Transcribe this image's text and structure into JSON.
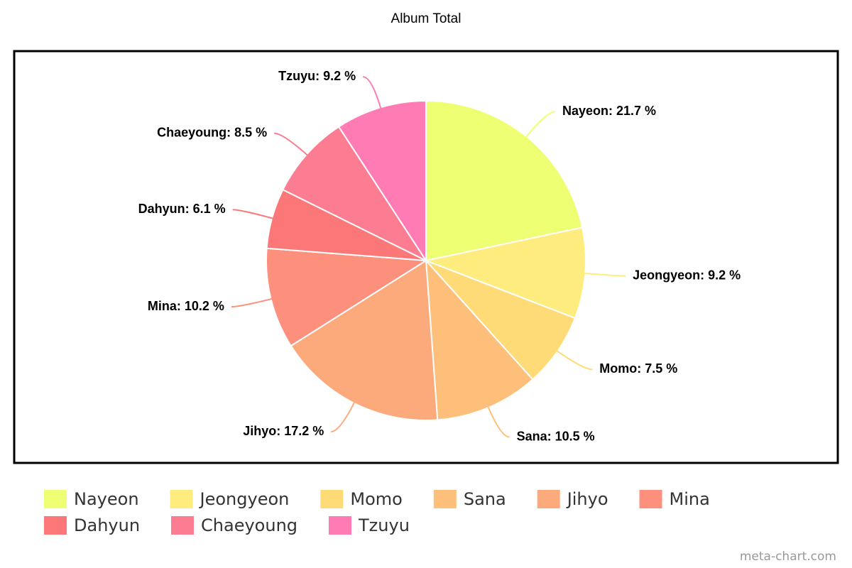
{
  "chart_data": {
    "type": "pie",
    "title": "Album Total",
    "categories": [
      "Nayeon",
      "Jeongyeon",
      "Momo",
      "Sana",
      "Jihyo",
      "Mina",
      "Dahyun",
      "Chaeyoung",
      "Tzuyu"
    ],
    "values": [
      21.7,
      9.2,
      7.5,
      10.5,
      17.2,
      10.2,
      6.1,
      8.5,
      9.2
    ],
    "value_labels": [
      "Nayeon: 21.7 %",
      "Jeongyeon: 9.2 %",
      "Momo: 7.5 %",
      "Sana: 10.5 %",
      "Jihyo: 17.2 %",
      "Mina: 10.2 %",
      "Dahyun: 6.1 %",
      "Chaeyoung: 8.5 %",
      "Tzuyu: 9.2 %"
    ],
    "colors": [
      "#efff73",
      "#ffec7e",
      "#ffdb78",
      "#fdbf7a",
      "#fca97c",
      "#fc907c",
      "#fc7878",
      "#fc7d92",
      "#ff7bb4"
    ],
    "watermark": "meta-chart.com"
  }
}
